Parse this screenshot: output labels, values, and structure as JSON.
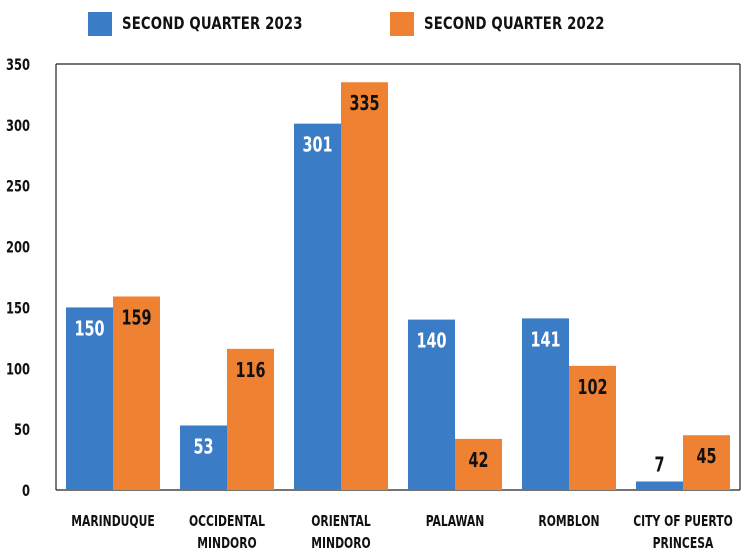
{
  "chart_data": {
    "type": "bar",
    "categories": [
      [
        "MARINDUQUE"
      ],
      [
        "OCCIDENTAL",
        "MINDORO"
      ],
      [
        "ORIENTAL",
        "MINDORO"
      ],
      [
        "PALAWAN"
      ],
      [
        "ROMBLON"
      ],
      [
        "CITY OF PUERTO",
        "PRINCESA"
      ]
    ],
    "series": [
      {
        "name": "SECOND QUARTER 2023",
        "color": "#3a7cc6",
        "values": [
          150,
          53,
          301,
          140,
          141,
          7
        ]
      },
      {
        "name": "SECOND QUARTER 2022",
        "color": "#ef8133",
        "values": [
          159,
          116,
          335,
          42,
          102,
          45
        ]
      }
    ],
    "ylim": [
      0,
      350
    ],
    "yticks": [
      0,
      50,
      100,
      150,
      200,
      250,
      300,
      350
    ],
    "legend_position": "top",
    "grid": false
  }
}
